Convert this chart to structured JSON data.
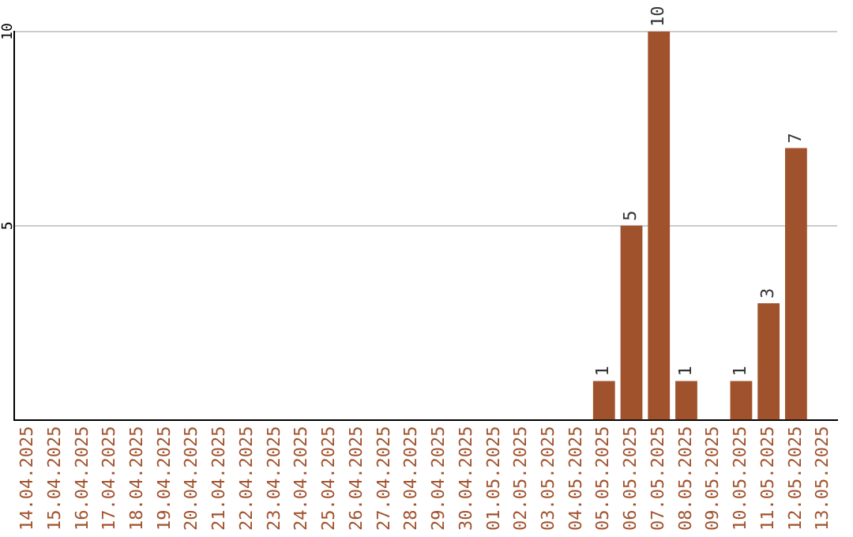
{
  "chart_data": {
    "type": "bar",
    "categories": [
      "14.04.2025",
      "15.04.2025",
      "16.04.2025",
      "17.04.2025",
      "18.04.2025",
      "19.04.2025",
      "20.04.2025",
      "21.04.2025",
      "22.04.2025",
      "23.04.2025",
      "24.04.2025",
      "25.04.2025",
      "26.04.2025",
      "27.04.2025",
      "28.04.2025",
      "29.04.2025",
      "30.04.2025",
      "01.05.2025",
      "02.05.2025",
      "03.05.2025",
      "04.05.2025",
      "05.05.2025",
      "06.05.2025",
      "07.05.2025",
      "08.05.2025",
      "09.05.2025",
      "10.05.2025",
      "11.05.2025",
      "12.05.2025",
      "13.05.2025"
    ],
    "values": [
      0,
      0,
      0,
      0,
      0,
      0,
      0,
      0,
      0,
      0,
      0,
      0,
      0,
      0,
      0,
      0,
      0,
      0,
      0,
      0,
      0,
      1,
      5,
      10,
      1,
      0,
      1,
      3,
      7,
      0
    ],
    "value_labels": [
      null,
      null,
      null,
      null,
      null,
      null,
      null,
      null,
      null,
      null,
      null,
      null,
      null,
      null,
      null,
      null,
      null,
      null,
      null,
      null,
      null,
      "1",
      "5",
      "10",
      "1",
      null,
      "1",
      "3",
      "7",
      null
    ],
    "color": "#a0522d",
    "ylim": [
      0,
      10
    ],
    "yticks": [
      5,
      10
    ],
    "grid": "y",
    "legend": false
  }
}
